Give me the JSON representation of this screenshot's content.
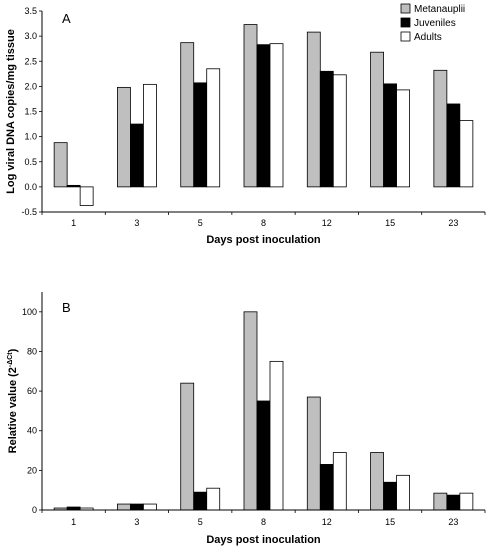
{
  "chart_data": [
    {
      "panel_label": "A",
      "type": "bar",
      "categories": [
        "1",
        "3",
        "5",
        "8",
        "12",
        "15",
        "23"
      ],
      "series": [
        {
          "name": "Metanauplii",
          "color": "#bfbfbf",
          "values": [
            0.88,
            1.98,
            2.87,
            3.23,
            3.08,
            2.68,
            2.32
          ]
        },
        {
          "name": "Juveniles",
          "color": "#000000",
          "values": [
            0.03,
            1.25,
            2.07,
            2.83,
            2.3,
            2.05,
            1.65
          ]
        },
        {
          "name": "Adults",
          "color": "#ffffff",
          "values": [
            -0.37,
            2.04,
            2.35,
            2.85,
            2.23,
            1.93,
            1.32
          ]
        }
      ],
      "xlabel": "Days post inoculation",
      "ylabel": "Log viral DNA copies/mg tissue",
      "ylim": [
        -0.5,
        3.5
      ],
      "yticks": [
        "-0.5",
        "0.0",
        "0.5",
        "1.0",
        "1.5",
        "2.0",
        "2.5",
        "3.0",
        "3.5"
      ],
      "legend_position": "top-right"
    },
    {
      "panel_label": "B",
      "type": "bar",
      "categories": [
        "1",
        "3",
        "5",
        "8",
        "12",
        "15",
        "23"
      ],
      "series": [
        {
          "name": "Metanauplii",
          "color": "#bfbfbf",
          "values": [
            1.0,
            3.0,
            64.0,
            100.0,
            57.0,
            29.0,
            8.5
          ]
        },
        {
          "name": "Juveniles",
          "color": "#000000",
          "values": [
            1.5,
            3.0,
            9.0,
            55.0,
            23.0,
            14.0,
            7.5
          ]
        },
        {
          "name": "Adults",
          "color": "#ffffff",
          "values": [
            1.0,
            3.0,
            11.0,
            75.0,
            29.0,
            17.5,
            8.5
          ]
        }
      ],
      "xlabel": "Days post inoculation",
      "ylabel": "Relative value (2",
      "ylabel_superscript": "-ΔCt",
      "ylabel_suffix": ")",
      "ylim": [
        0,
        110
      ],
      "yticks": [
        "0",
        "20",
        "40",
        "60",
        "80",
        "100"
      ]
    }
  ]
}
